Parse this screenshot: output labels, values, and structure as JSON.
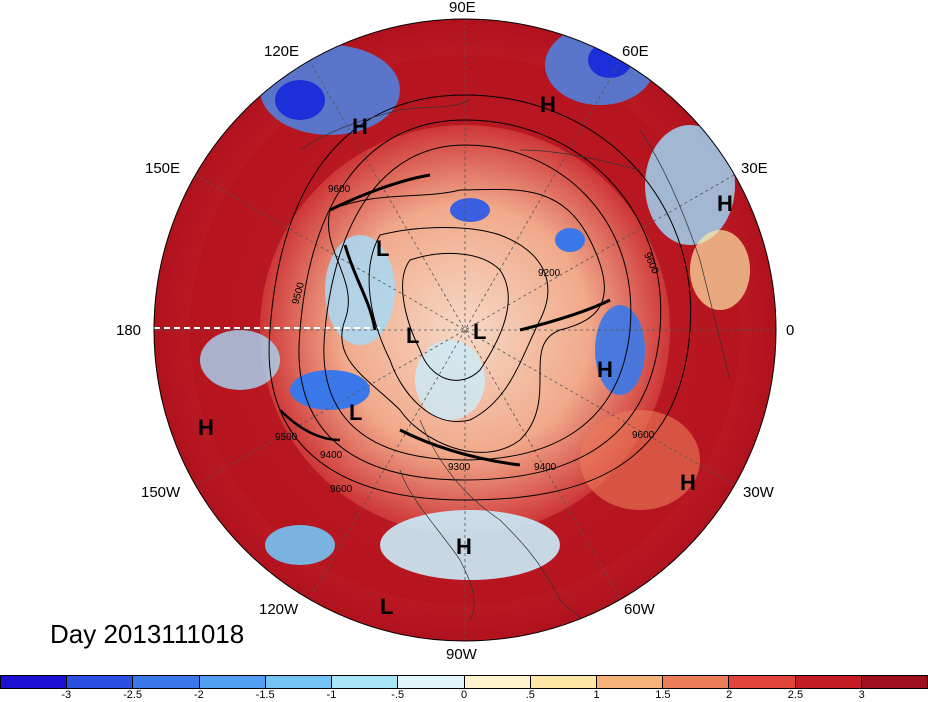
{
  "title_label": "Day 2013111018",
  "longitude_labels": [
    {
      "text": "90E"
    },
    {
      "text": "120E"
    },
    {
      "text": "60E"
    },
    {
      "text": "150E"
    },
    {
      "text": "30E"
    },
    {
      "text": "180"
    },
    {
      "text": "0"
    },
    {
      "text": "150W"
    },
    {
      "text": "30W"
    },
    {
      "text": "120W"
    },
    {
      "text": "60W"
    },
    {
      "text": "90W"
    }
  ],
  "pressure_centers": [
    {
      "text": "H"
    },
    {
      "text": "H"
    },
    {
      "text": "H"
    },
    {
      "text": "H"
    },
    {
      "text": "H"
    },
    {
      "text": "H"
    },
    {
      "text": "H"
    },
    {
      "text": "L"
    },
    {
      "text": "L"
    },
    {
      "text": "L"
    },
    {
      "text": "L"
    },
    {
      "text": "L"
    }
  ],
  "contour_labels": [
    "9600",
    "9500",
    "9200",
    "9600",
    "9500",
    "9400",
    "9600",
    "9400",
    "9600",
    "9300"
  ],
  "colorbar": {
    "colors": [
      "#1c10d2",
      "#2b4fe0",
      "#3a78ea",
      "#4f9ef2",
      "#73c4f5",
      "#a8e6f7",
      "#e0f6fa",
      "#fff3cf",
      "#fde7a5",
      "#f7b27a",
      "#ec7d5a",
      "#e0443b",
      "#c41c24",
      "#a00d1c"
    ],
    "ticks": [
      "-3",
      "-2.5",
      "-2",
      "-1.5",
      "-1",
      "-.5",
      "0",
      ".5",
      "1",
      "1.5",
      "2",
      "2.5",
      "3"
    ]
  }
}
